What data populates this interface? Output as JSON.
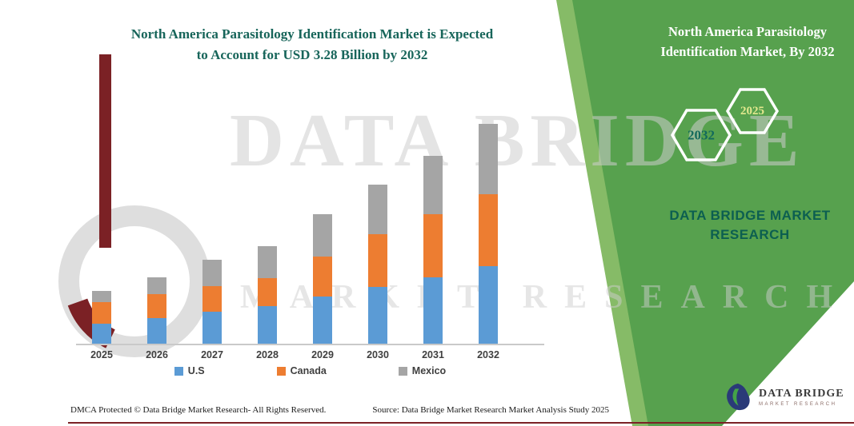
{
  "header": {
    "title_line1": "North America Parasitology Identification Market is Expected",
    "title_line2": "to Account for USD 3.28 Billion by 2032"
  },
  "side_panel": {
    "title_line1": "North America Parasitology",
    "title_line2": "Identification Market, By 2032",
    "hexagons": [
      {
        "year": "2032"
      },
      {
        "year": "2025"
      }
    ],
    "brand_line1": "DATA BRIDGE MARKET",
    "brand_line2": "RESEARCH",
    "panel_color": "#57a14e",
    "accent_color": "#86bb67"
  },
  "watermark": {
    "line1": "DATA BRIDGE",
    "line2": "MARKET RESEARCH"
  },
  "chart_data": {
    "type": "bar",
    "stacked": true,
    "title": "North America Parasitology Identification Market is Expected to Account for USD 3.28 Billion by 2032",
    "unit": "USD Billion",
    "categories": [
      "2025",
      "2026",
      "2027",
      "2028",
      "2029",
      "2030",
      "2031",
      "2032"
    ],
    "series": [
      {
        "name": "U.S",
        "color": "#5b9bd5",
        "values": [
          0.3,
          0.38,
          0.48,
          0.56,
          0.7,
          0.85,
          0.99,
          1.16
        ]
      },
      {
        "name": "Canada",
        "color": "#ed7d31",
        "values": [
          0.32,
          0.36,
          0.38,
          0.42,
          0.6,
          0.78,
          0.94,
          1.07
        ]
      },
      {
        "name": "Mexico",
        "color": "#a5a5a5",
        "values": [
          0.17,
          0.25,
          0.39,
          0.48,
          0.63,
          0.74,
          0.87,
          1.05
        ]
      }
    ],
    "totals": [
      0.79,
      0.99,
      1.25,
      1.46,
      1.93,
      2.37,
      2.8,
      3.28
    ],
    "ylim": [
      0,
      3.5
    ],
    "grid": false,
    "legend_position": "bottom"
  },
  "footer": {
    "dmca": "DMCA Protected © Data Bridge Market Research-  All Rights Reserved.",
    "source": "Source: Data Bridge Market Research  Market Analysis Study 2025"
  },
  "logo": {
    "name": "DATA BRIDGE",
    "subtext": "MARKET RESEARCH"
  }
}
